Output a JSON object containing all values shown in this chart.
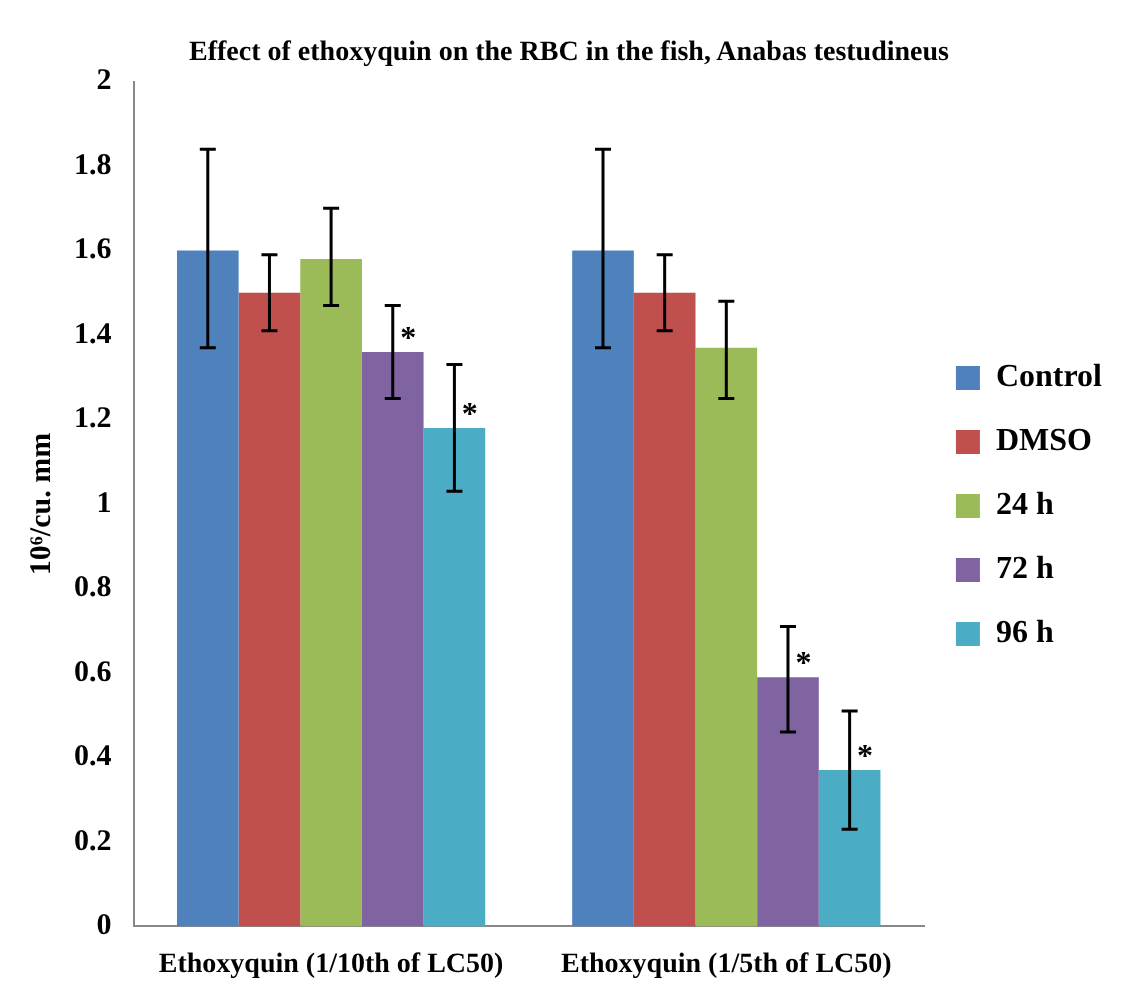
{
  "chart_data": {
    "type": "bar",
    "title": "Effect of ethoxyquin on the RBC in the fish, Anabas testudineus",
    "ylabel": "10⁶/cu. mm",
    "categories": [
      "Ethoxyquin (1/10th of LC50)",
      "Ethoxyquin (1/5th of LC50)"
    ],
    "series": [
      {
        "name": "Control",
        "color": "#4f81bd",
        "values": [
          1.6,
          1.6
        ],
        "errors": [
          [
            1.37,
            1.84
          ],
          [
            1.37,
            1.84
          ]
        ]
      },
      {
        "name": "DMSO",
        "color": "#c0504d",
        "values": [
          1.5,
          1.5
        ],
        "errors": [
          [
            1.41,
            1.59
          ],
          [
            1.41,
            1.59
          ]
        ]
      },
      {
        "name": "24 h",
        "color": "#9bbb59",
        "values": [
          1.58,
          1.37
        ],
        "errors": [
          [
            1.47,
            1.7
          ],
          [
            1.25,
            1.48
          ]
        ]
      },
      {
        "name": "72 h",
        "color": "#8064a2",
        "values": [
          1.36,
          0.59
        ],
        "errors": [
          [
            1.25,
            1.47
          ],
          [
            0.46,
            0.71
          ]
        ],
        "value_labels": [
          "*",
          "*"
        ]
      },
      {
        "name": "96 h",
        "color": "#4bacc6",
        "values": [
          1.18,
          0.37
        ],
        "errors": [
          [
            1.03,
            1.33
          ],
          [
            0.23,
            0.51
          ]
        ],
        "value_labels": [
          "*",
          "*"
        ]
      }
    ],
    "ylim": [
      0,
      2
    ],
    "yticks": [
      0,
      0.2,
      0.4,
      0.6,
      0.8,
      1,
      1.2,
      1.4,
      1.6,
      1.8,
      2
    ],
    "grid": false,
    "legend": "right"
  }
}
